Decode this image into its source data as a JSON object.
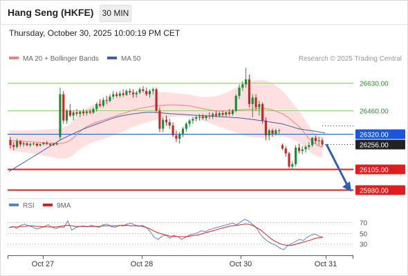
{
  "header": {
    "title": "Hang Seng (HKFE)",
    "timeframe": "30 MIN",
    "datetime": "Thursday, October 30, 2025 10:00:19 PM CET",
    "credit": "Research © 2025 Trading Central"
  },
  "legend": {
    "ma20": "MA 20 + Bollinger Bands",
    "ma50": "MA 50",
    "rsi": "RSI",
    "ma9": "9MA"
  },
  "colors": {
    "candle_up": "#1f8a3a",
    "candle_down": "#c62828",
    "ma20": "#f08080",
    "bollinger_fill": "#ffd6d6",
    "ma50": "#3d5ea8",
    "current_price": "#1a57d8",
    "support": "#e11c1c",
    "resistance": "#8fd16f",
    "rsi": "#5b7fd6",
    "rsi_ma": "#e11c1c",
    "arrow": "#2f5fb0"
  },
  "chart_data": [
    {
      "type": "candlestick",
      "title": "Hang Seng (HKFE)",
      "x_tick_labels": [
        "Oct 27",
        "Oct 28",
        "Oct 30",
        "Oct 31"
      ],
      "ylim": [
        25950,
        26730
      ],
      "levels": [
        {
          "kind": "resistance",
          "value": 26630.0,
          "label": "26630.00"
        },
        {
          "kind": "resistance",
          "value": 26460.0,
          "label": "26460.00"
        },
        {
          "kind": "current",
          "value": 26320.0,
          "label": "26320.00"
        },
        {
          "kind": "last",
          "value": 26256.0,
          "label": "26256.00"
        },
        {
          "kind": "support",
          "value": 26105.0,
          "label": "26105.00"
        },
        {
          "kind": "support",
          "value": 25980.0,
          "label": "25980.00"
        }
      ],
      "forecast_arrow": {
        "from": 26256,
        "to": 25980
      },
      "candles_ohlc": [
        [
          26280,
          26300,
          26230,
          26250
        ],
        [
          26250,
          26270,
          26220,
          26240
        ],
        [
          26240,
          26290,
          26230,
          26275
        ],
        [
          26275,
          26280,
          26240,
          26255
        ],
        [
          26255,
          26270,
          26240,
          26262
        ],
        [
          26262,
          26268,
          26245,
          26250
        ],
        [
          26250,
          26265,
          26240,
          26258
        ],
        [
          26258,
          26268,
          26248,
          26260
        ],
        [
          26260,
          26262,
          26240,
          26248
        ],
        [
          26248,
          26262,
          26242,
          26256
        ],
        [
          26256,
          26270,
          26250,
          26265
        ],
        [
          26265,
          26275,
          26252,
          26258
        ],
        [
          26258,
          26262,
          26246,
          26250
        ],
        [
          26250,
          26265,
          26246,
          26260
        ],
        [
          26260,
          26268,
          26250,
          26255
        ],
        [
          26300,
          26600,
          26280,
          26560
        ],
        [
          26560,
          26580,
          26380,
          26400
        ],
        [
          26400,
          26470,
          26380,
          26460
        ],
        [
          26460,
          26500,
          26420,
          26430
        ],
        [
          26430,
          26460,
          26400,
          26450
        ],
        [
          26450,
          26470,
          26425,
          26440
        ],
        [
          26440,
          26460,
          26420,
          26455
        ],
        [
          26455,
          26470,
          26430,
          26445
        ],
        [
          26445,
          26465,
          26430,
          26455
        ],
        [
          26455,
          26470,
          26440,
          26448
        ],
        [
          26448,
          26480,
          26440,
          26470
        ],
        [
          26470,
          26510,
          26455,
          26500
        ],
        [
          26500,
          26530,
          26480,
          26490
        ],
        [
          26490,
          26540,
          26480,
          26525
        ],
        [
          26525,
          26550,
          26500,
          26520
        ],
        [
          26520,
          26560,
          26510,
          26545
        ],
        [
          26545,
          26580,
          26530,
          26560
        ],
        [
          26560,
          26575,
          26540,
          26550
        ],
        [
          26550,
          26580,
          26540,
          26565
        ],
        [
          26565,
          26590,
          26545,
          26555
        ],
        [
          26555,
          26590,
          26550,
          26580
        ],
        [
          26580,
          26595,
          26555,
          26570
        ],
        [
          26570,
          26590,
          26540,
          26560
        ],
        [
          26560,
          26580,
          26540,
          26570
        ],
        [
          26570,
          26600,
          26560,
          26590
        ],
        [
          26590,
          26610,
          26570,
          26580
        ],
        [
          26580,
          26600,
          26550,
          26560
        ],
        [
          26560,
          26590,
          26540,
          26580
        ],
        [
          26580,
          26600,
          26560,
          26590
        ],
        [
          26590,
          26600,
          26450,
          26460
        ],
        [
          26460,
          26480,
          26330,
          26350
        ],
        [
          26350,
          26420,
          26330,
          26405
        ],
        [
          26405,
          26430,
          26370,
          26390
        ],
        [
          26390,
          26410,
          26350,
          26370
        ],
        [
          26370,
          26390,
          26300,
          26310
        ],
        [
          26310,
          26340,
          26270,
          26290
        ],
        [
          26290,
          26330,
          26260,
          26320
        ],
        [
          26320,
          26360,
          26300,
          26350
        ],
        [
          26350,
          26390,
          26330,
          26380
        ],
        [
          26380,
          26410,
          26360,
          26400
        ],
        [
          26400,
          26420,
          26380,
          26410
        ],
        [
          26410,
          26430,
          26395,
          26420
        ],
        [
          26420,
          26440,
          26400,
          26425
        ],
        [
          26425,
          26440,
          26405,
          26415
        ],
        [
          26415,
          26435,
          26400,
          26430
        ],
        [
          26430,
          26450,
          26410,
          26425
        ],
        [
          26425,
          26450,
          26410,
          26440
        ],
        [
          26440,
          26460,
          26420,
          26430
        ],
        [
          26430,
          26455,
          26420,
          26445
        ],
        [
          26445,
          26460,
          26425,
          26435
        ],
        [
          26435,
          26455,
          26420,
          26450
        ],
        [
          26450,
          26470,
          26430,
          26440
        ],
        [
          26440,
          26470,
          26430,
          26460
        ],
        [
          26460,
          26560,
          26450,
          26550
        ],
        [
          26550,
          26620,
          26530,
          26600
        ],
        [
          26600,
          26640,
          26580,
          26620
        ],
        [
          26620,
          26720,
          26600,
          26650
        ],
        [
          26650,
          26680,
          26480,
          26500
        ],
        [
          26500,
          26560,
          26420,
          26540
        ],
        [
          26540,
          26560,
          26460,
          26480
        ],
        [
          26480,
          26520,
          26430,
          26500
        ],
        [
          26500,
          26510,
          26380,
          26400
        ],
        [
          26400,
          26420,
          26280,
          26310
        ],
        [
          26310,
          26350,
          26280,
          26340
        ],
        [
          26340,
          26350,
          26300,
          26320
        ],
        [
          26320,
          26350,
          26310,
          26340
        ],
        [
          26340,
          26350,
          26320,
          26340
        ],
        [
          26250,
          26260,
          26220,
          26230
        ],
        [
          26230,
          26245,
          26180,
          26200
        ],
        [
          26200,
          26210,
          26110,
          26120
        ],
        [
          26120,
          26150,
          26100,
          26135
        ],
        [
          26135,
          26250,
          26120,
          26235
        ],
        [
          26235,
          26260,
          26200,
          26215
        ],
        [
          26215,
          26245,
          26195,
          26225
        ],
        [
          26225,
          26250,
          26205,
          26240
        ],
        [
          26240,
          26270,
          26225,
          26250
        ],
        [
          26250,
          26300,
          26240,
          26295
        ],
        [
          26295,
          26310,
          26260,
          26275
        ],
        [
          26275,
          26300,
          26250,
          26280
        ],
        [
          26280,
          26295,
          26240,
          26256
        ]
      ],
      "ma20": [
        26280,
        26278,
        26276,
        26274,
        26272,
        26270,
        26268,
        26266,
        26264,
        26262,
        26260,
        26262,
        26270,
        26290,
        26320,
        26345,
        26365,
        26380,
        26392,
        26400,
        26410,
        26420,
        26430,
        26440,
        26450,
        26460,
        26468,
        26475,
        26480,
        26485,
        26490,
        26492,
        26494,
        26495,
        26495,
        26494,
        26492,
        26488,
        26482,
        26475,
        26470,
        26465,
        26460,
        26458,
        26458,
        26460,
        26462,
        26464,
        26466,
        26468,
        26470,
        26472,
        26472,
        26470,
        26462,
        26452,
        26440,
        26420,
        26395,
        26370,
        26340,
        26300,
        26270,
        26250,
        26238
      ],
      "ma50": [
        26090,
        26110,
        26130,
        26150,
        26170,
        26190,
        26210,
        26230,
        26250,
        26270,
        26290,
        26305,
        26320,
        26335,
        26350,
        26362,
        26374,
        26386,
        26398,
        26410,
        26420,
        26428,
        26434,
        26440,
        26444,
        26448,
        26450,
        26450,
        26448,
        26445,
        26442,
        26440,
        26438,
        26436,
        26434,
        26432,
        26430,
        26428,
        26426,
        26424,
        26422,
        26420,
        26418,
        26416,
        26412,
        26408,
        26404,
        26400,
        26395,
        26390,
        26385,
        26380,
        26370,
        26360,
        26350,
        26345,
        26340,
        26336,
        26330,
        26325
      ],
      "bollinger_upper_peak": 26680,
      "bollinger_lower_trough": 26110
    },
    {
      "type": "line",
      "title": "RSI",
      "y_tick_labels": [
        "70",
        "50",
        "30"
      ],
      "ylim": [
        15,
        85
      ],
      "series": [
        {
          "name": "RSI",
          "values": [
            60,
            62,
            58,
            64,
            66,
            63,
            61,
            57,
            59,
            62,
            65,
            60,
            58,
            61,
            60,
            72,
            55,
            60,
            62,
            63,
            61,
            64,
            62,
            60,
            65,
            66,
            62,
            60,
            64,
            63,
            66,
            68,
            65,
            62,
            64,
            60,
            52,
            42,
            38,
            44,
            46,
            40,
            45,
            43,
            38,
            42,
            46,
            48,
            50,
            54,
            52,
            56,
            58,
            60,
            62,
            64,
            66,
            68,
            65,
            70,
            75,
            72,
            66,
            60,
            48,
            40,
            34,
            30,
            27,
            22,
            19,
            26,
            30,
            34,
            38,
            36,
            42,
            46,
            48,
            44,
            42
          ]
        },
        {
          "name": "9MA",
          "values": [
            60,
            61,
            61,
            62,
            62,
            63,
            63,
            62,
            62,
            61,
            61,
            61,
            61,
            62,
            63,
            64,
            63,
            62,
            62,
            62,
            62,
            62,
            62,
            62,
            63,
            63,
            63,
            63,
            63,
            64,
            64,
            63,
            63,
            63,
            62,
            60,
            57,
            53,
            50,
            48,
            46,
            44,
            44,
            43,
            43,
            43,
            44,
            45,
            46,
            48,
            50,
            52,
            54,
            56,
            58,
            60,
            62,
            63,
            64,
            65,
            66,
            66,
            64,
            60,
            56,
            50,
            44,
            38,
            34,
            30,
            28,
            27,
            27,
            29,
            31,
            33,
            35,
            37,
            40,
            41,
            42
          ]
        }
      ]
    }
  ]
}
